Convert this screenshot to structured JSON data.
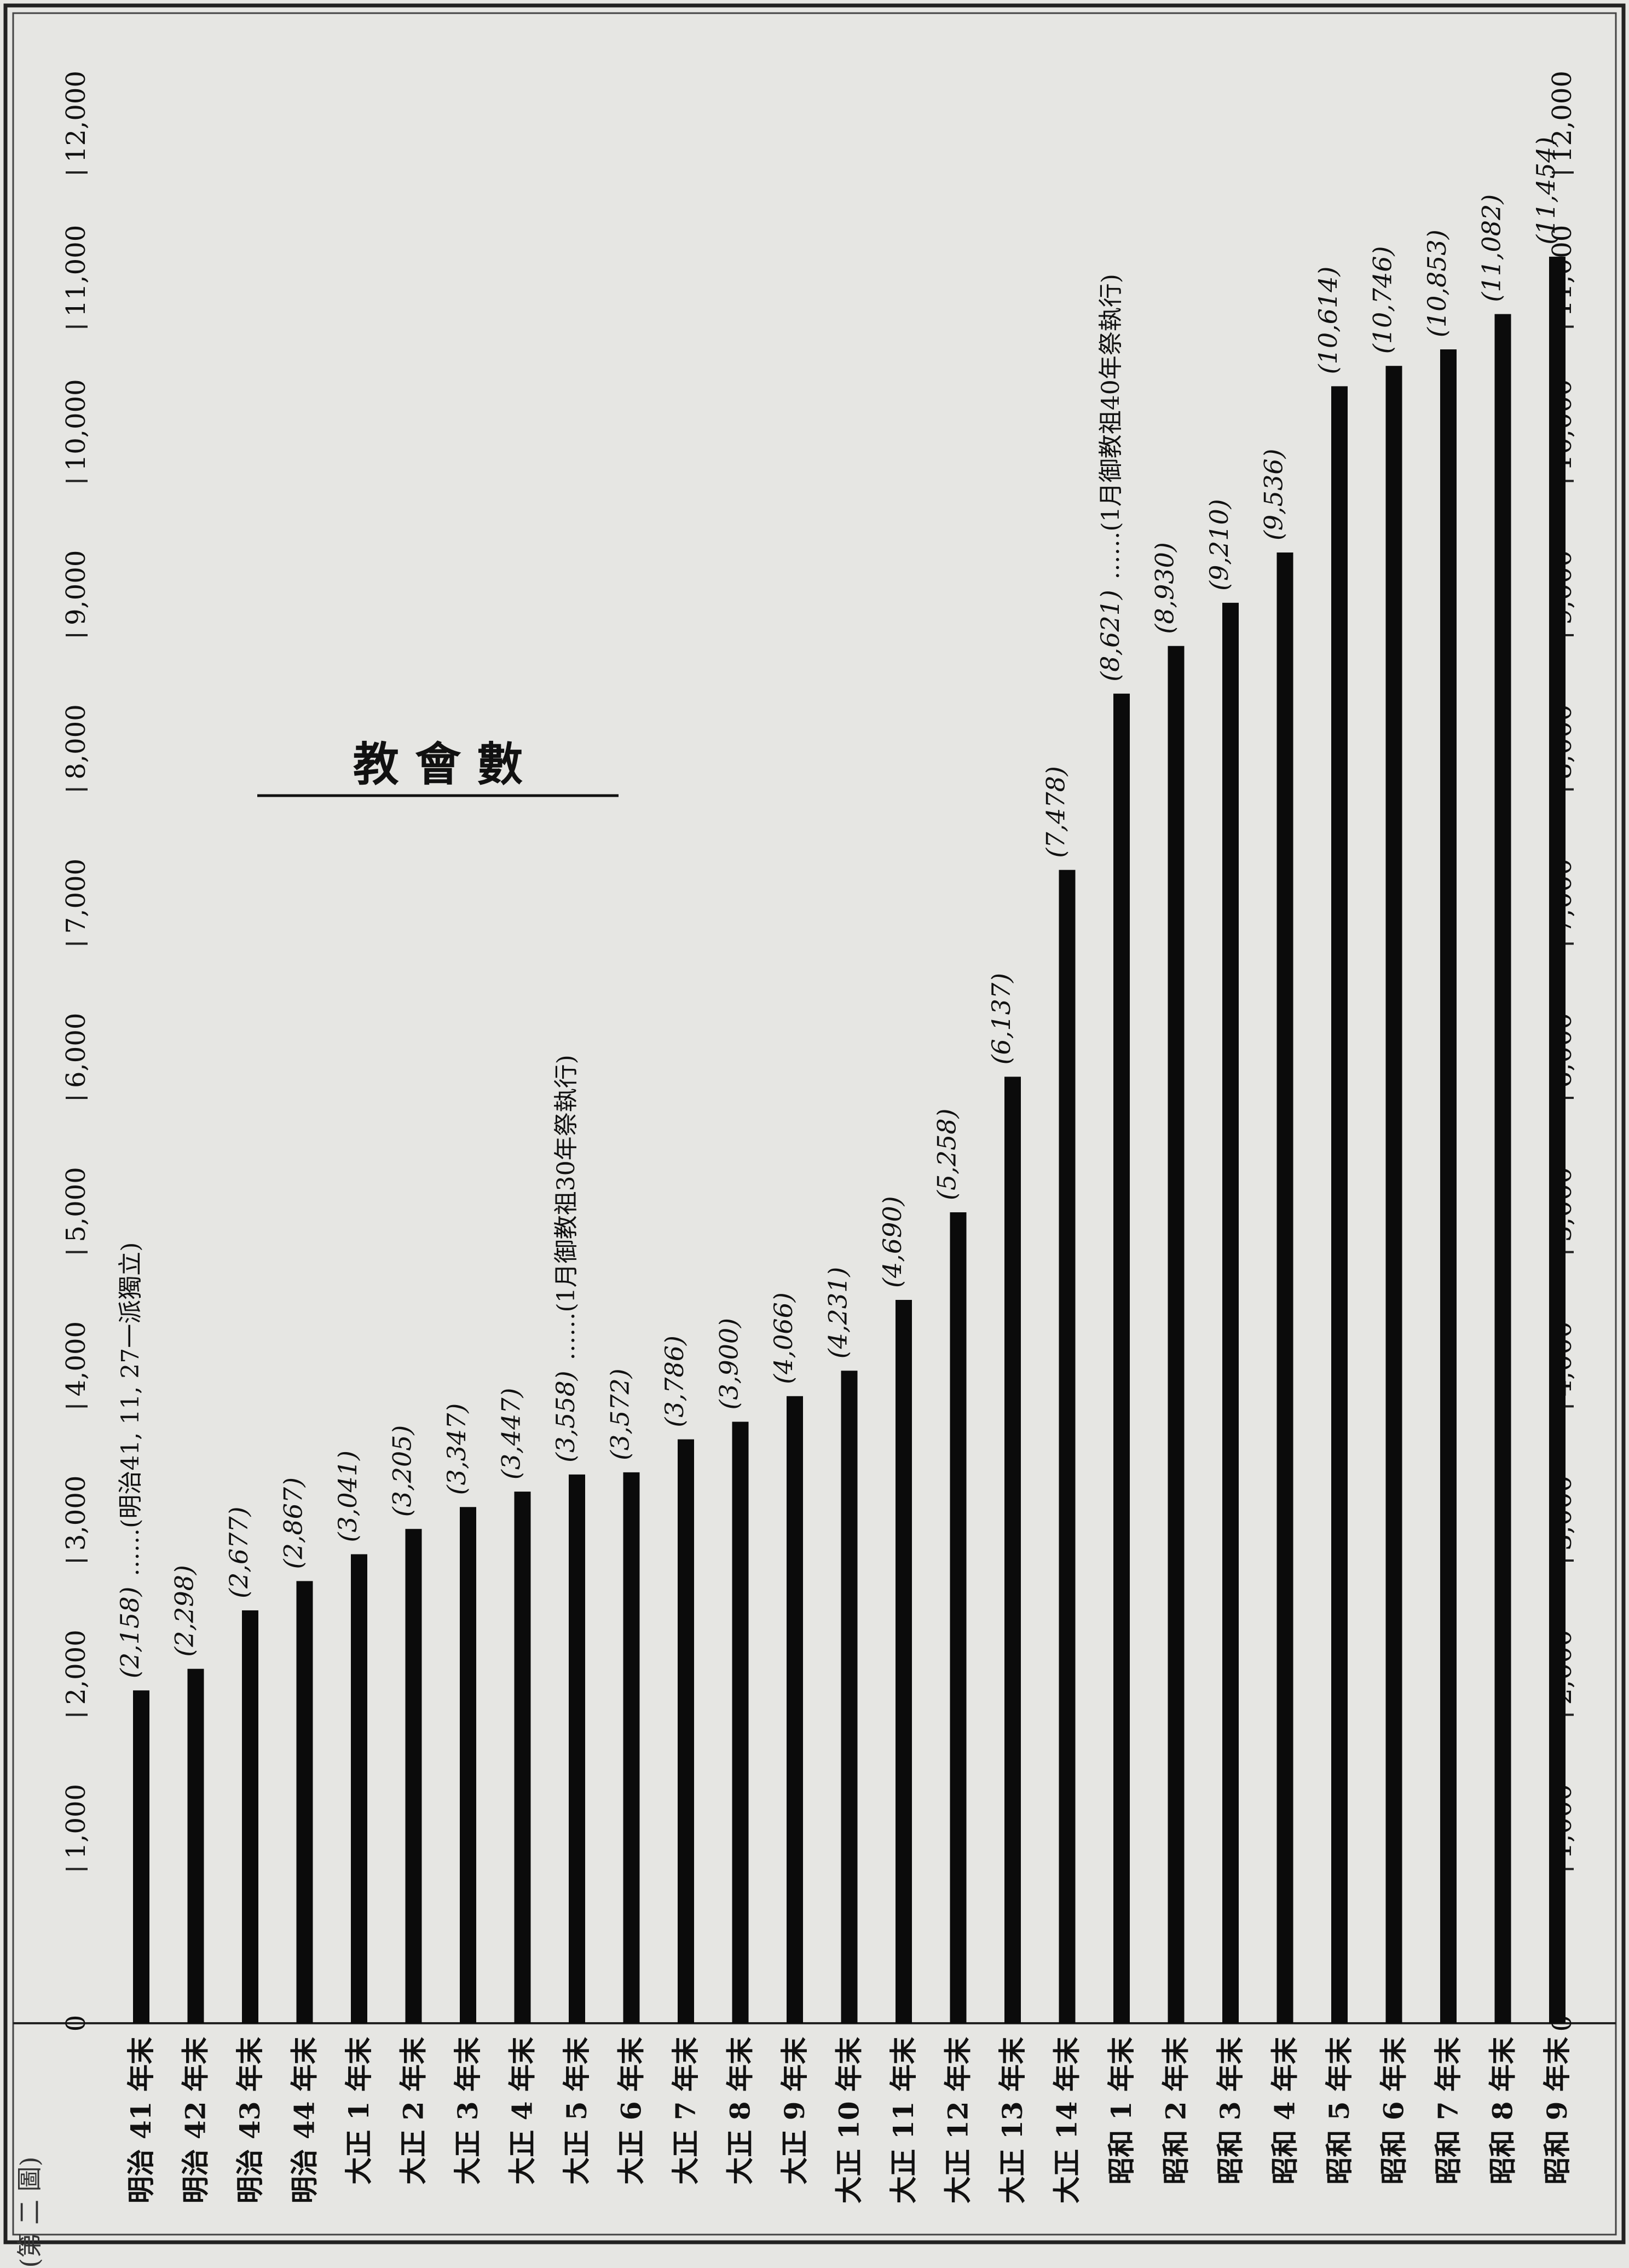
{
  "header": {
    "label": "(第  二  圖)"
  },
  "chart_data": {
    "type": "bar",
    "orientation": "horizontal",
    "title": "教 會 數",
    "xlim": [
      0,
      12000
    ],
    "ticks": [
      0,
      1000,
      2000,
      3000,
      4000,
      5000,
      6000,
      7000,
      8000,
      9000,
      10000,
      11000,
      12000
    ],
    "tick_labels": [
      "0",
      "1,000",
      "2,000",
      "3,000",
      "4,000",
      "5,000",
      "6,000",
      "7,000",
      "8,000",
      "9,000",
      "10,000",
      "11,000",
      "12,000"
    ],
    "categories": [
      "明治 41 年末",
      "明治 42 年末",
      "明治 43 年末",
      "明治 44 年末",
      "大正 1 年末",
      "大正 2 年末",
      "大正 3 年末",
      "大正 4 年末",
      "大正 5 年末",
      "大正 6 年末",
      "大正 7 年末",
      "大正 8 年末",
      "大正 9 年末",
      "大正 10 年末",
      "大正 11 年末",
      "大正 12 年末",
      "大正 13 年末",
      "大正 14 年末",
      "昭和 1 年末",
      "昭和 2 年末",
      "昭和 3 年末",
      "昭和 4 年末",
      "昭和 5 年末",
      "昭和 6 年末",
      "昭和 7 年末",
      "昭和 8 年末",
      "昭和 9 年末"
    ],
    "values": [
      2158,
      2298,
      2677,
      2867,
      3041,
      3205,
      3347,
      3447,
      3558,
      3572,
      3786,
      3900,
      4066,
      4231,
      4690,
      5258,
      6137,
      7478,
      8621,
      8930,
      9210,
      9536,
      10614,
      10746,
      10853,
      11082,
      11454
    ],
    "value_labels": [
      "(2,158)",
      "(2,298)",
      "(2,677)",
      "(2,867)",
      "(3,041)",
      "(3,205)",
      "(3,347)",
      "(3,447)",
      "(3,558)",
      "(3,572)",
      "(3,786)",
      "(3,900)",
      "(4,066)",
      "(4,231)",
      "(4,690)",
      "(5,258)",
      "(6,137)",
      "(7,478)",
      "(8,621)",
      "(8,930)",
      "(9,210)",
      "(9,536)",
      "(10,614)",
      "(10,746)",
      "(10,853)",
      "(11,082)",
      "(11,454)"
    ],
    "annotations": [
      {
        "index": 0,
        "text": "……(明治41, 11, 27一派獨立)"
      },
      {
        "index": 8,
        "text": "……(1月御教祖30年祭執行)"
      },
      {
        "index": 18,
        "text": "……(1月御教祖40年祭執行)"
      }
    ],
    "grid": false,
    "legend": "none"
  }
}
